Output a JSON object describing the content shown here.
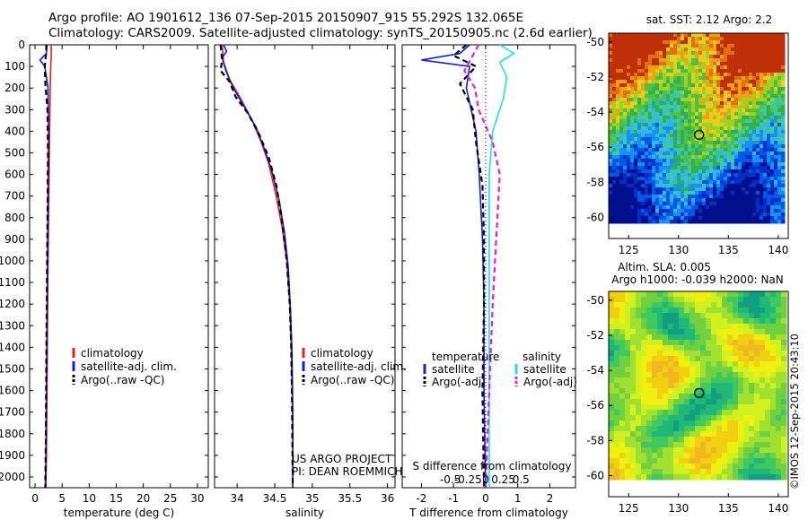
{
  "header": {
    "line1": "Argo profile: AO 1901612_136 07-Sep-2015 20150907_915 55.292S 132.065E",
    "line2": "Climatology: CARS2009. Satellite-adjusted climatology: synTS_20150905.nc (2.6d earlier)"
  },
  "credits": {
    "project": "US ARGO PROJECT",
    "pi": "PI: DEAN ROEMMICH",
    "side": "©IMOS 12-Sep-2015 20:43:10"
  },
  "colors": {
    "climatology": "#e8201c",
    "satellite": "#1020e0",
    "argo": "#000000",
    "sal_satellite": "#18e0f0",
    "sal_argo": "#e020e0"
  },
  "chart_data": [
    {
      "id": "temperature",
      "type": "line",
      "xlabel": "temperature (deg C)",
      "ylabel": "",
      "xlim": [
        -1,
        32
      ],
      "ylim": [
        2050,
        0
      ],
      "xticks": [
        0,
        5,
        10,
        15,
        20,
        25,
        30
      ],
      "yticks": [
        0,
        100,
        200,
        300,
        400,
        500,
        600,
        700,
        800,
        900,
        1000,
        1100,
        1200,
        1300,
        1400,
        1500,
        1600,
        1700,
        1800,
        1900,
        2000
      ],
      "legend": [
        "climatology",
        "satellite-adj. clim.",
        "Argo(..raw -QC)"
      ],
      "series": [
        {
          "name": "climatology",
          "style": "solid",
          "color_key": "climatology",
          "x": [
            3.0,
            3.0,
            2.9,
            2.8,
            2.7,
            2.6,
            2.5,
            2.4,
            2.3,
            2.2,
            2.1,
            2.0
          ],
          "y": [
            0,
            50,
            100,
            200,
            400,
            600,
            800,
            1000,
            1300,
            1600,
            1900,
            2050
          ]
        },
        {
          "name": "satellite-adj. clim.",
          "style": "solid",
          "color_key": "satellite",
          "x": [
            2.2,
            2.1,
            0.9,
            1.8,
            2.4,
            2.5,
            2.4,
            2.3,
            2.2,
            2.1,
            2.0,
            1.9
          ],
          "y": [
            0,
            40,
            70,
            100,
            200,
            400,
            700,
            1000,
            1300,
            1600,
            1900,
            2050
          ]
        },
        {
          "name": "Argo(..raw -QC)",
          "style": "dashed",
          "color_key": "argo",
          "x": [
            2.1,
            2.0,
            1.8,
            1.9,
            2.3,
            2.4,
            2.3,
            2.2,
            2.1,
            2.0,
            1.9
          ],
          "y": [
            0,
            50,
            100,
            180,
            300,
            500,
            800,
            1100,
            1400,
            1800,
            2050
          ]
        }
      ]
    },
    {
      "id": "salinity",
      "type": "line",
      "xlabel": "salinity",
      "ylabel": "",
      "xlim": [
        33.7,
        36.1
      ],
      "ylim": [
        2050,
        0
      ],
      "xticks": [
        34,
        34.5,
        35,
        35.5,
        36
      ],
      "xtick_labels": [
        "34",
        "34.5",
        "35",
        "35.5",
        "36"
      ],
      "legend": [
        "climatology",
        "satellite-adj. clim.",
        "Argo(..raw -QC)"
      ],
      "series": [
        {
          "name": "climatology",
          "style": "solid",
          "color_key": "climatology",
          "x": [
            33.8,
            33.82,
            33.9,
            34.05,
            34.2,
            34.32,
            34.42,
            34.52,
            34.6,
            34.66,
            34.7,
            34.72,
            34.73,
            34.74,
            34.74
          ],
          "y": [
            0,
            80,
            160,
            250,
            350,
            450,
            550,
            700,
            850,
            1000,
            1200,
            1400,
            1600,
            1800,
            2050
          ]
        },
        {
          "name": "satellite-adj. clim.",
          "style": "solid",
          "color_key": "satellite",
          "x": [
            33.82,
            33.86,
            33.8,
            33.85,
            33.95,
            34.1,
            34.25,
            34.36,
            34.46,
            34.56,
            34.63,
            34.68,
            34.71,
            34.73,
            34.74,
            34.74
          ],
          "y": [
            0,
            30,
            60,
            120,
            200,
            290,
            380,
            480,
            580,
            720,
            870,
            1030,
            1230,
            1430,
            1700,
            2050
          ]
        },
        {
          "name": "Argo(..raw -QC)",
          "style": "dashed",
          "color_key": "argo",
          "x": [
            33.78,
            33.8,
            33.78,
            33.9,
            33.98,
            34.15,
            34.3,
            34.42,
            34.52,
            34.6,
            34.66,
            34.7,
            34.72,
            34.73,
            34.74
          ],
          "y": [
            0,
            70,
            120,
            170,
            240,
            320,
            420,
            520,
            650,
            820,
            1000,
            1200,
            1400,
            1650,
            2050
          ]
        }
      ]
    },
    {
      "id": "difference",
      "type": "line",
      "xlabel": "T difference from climatology",
      "x2label": "S difference from climatology",
      "xlim": [
        -2.6,
        2.8
      ],
      "ylim": [
        2050,
        0
      ],
      "xticks": [
        -2,
        -1,
        0,
        1,
        2
      ],
      "x2ticks": [
        -0.5,
        -0.25,
        0,
        0.25,
        0.5
      ],
      "x2tick_labels": [
        "-0.5",
        "-0.25",
        "0",
        "0.25",
        "0.5"
      ],
      "legend_headers": [
        "temperature",
        "salinity"
      ],
      "legend": [
        "satellite",
        "Argo(-adj)",
        "satellite",
        "Argo(-adj)"
      ],
      "series": [
        {
          "name": "satellite",
          "group": "temperature",
          "style": "solid",
          "color_key": "satellite",
          "x": [
            -0.5,
            -0.8,
            -2.0,
            -0.5,
            -0.6,
            -0.3,
            -0.2,
            -0.1,
            -0.05,
            -0.05,
            0.0
          ],
          "y": [
            0,
            40,
            70,
            100,
            200,
            400,
            600,
            900,
            1200,
            1600,
            2050
          ]
        },
        {
          "name": "Argo(-adj)",
          "group": "temperature",
          "style": "dashed",
          "color_key": "argo",
          "x": [
            -0.6,
            -1.0,
            -0.3,
            -0.8,
            -0.4,
            -0.3,
            -0.1,
            -0.05,
            -0.05,
            -0.1,
            -0.05
          ],
          "y": [
            0,
            50,
            100,
            180,
            300,
            450,
            650,
            900,
            1200,
            1600,
            2050
          ]
        },
        {
          "name": "satellite",
          "group": "salinity",
          "style": "solid",
          "color_key": "sal_satellite",
          "x": [
            0.2,
            0.4,
            0.2,
            0.3,
            0.25,
            0.1,
            0.05,
            0.05,
            0.05,
            0.05,
            0.05
          ],
          "y": [
            0,
            40,
            80,
            150,
            250,
            400,
            600,
            900,
            1200,
            1600,
            2050
          ]
        },
        {
          "name": "Argo(-adj)",
          "group": "salinity",
          "style": "dashed",
          "color_key": "sal_argo",
          "x": [
            -0.1,
            -0.2,
            -0.3,
            -0.15,
            -0.1,
            0.1,
            0.2,
            0.15,
            0.1,
            0.05,
            0.0
          ],
          "y": [
            0,
            60,
            120,
            200,
            300,
            450,
            600,
            900,
            1200,
            1600,
            2050
          ]
        }
      ]
    },
    {
      "id": "sst-map",
      "type": "heatmap",
      "title": "sat. SST: 2.12  Argo: 2.2",
      "xlim": [
        123,
        141
      ],
      "ylim": [
        -61.2,
        -49.5
      ],
      "xticks": [
        125,
        130,
        135,
        140
      ],
      "yticks": [
        -50,
        -52,
        -54,
        -56,
        -58,
        -60
      ],
      "marker": {
        "lon": 132.065,
        "lat": -55.292
      }
    },
    {
      "id": "sla-map",
      "type": "heatmap",
      "title": "Altim. SLA: 0.005",
      "subtitle": "Argo h1000: -0.039 h2000: NaN",
      "xlim": [
        123,
        141
      ],
      "ylim": [
        -61.2,
        -49.5
      ],
      "xticks": [
        125,
        130,
        135,
        140
      ],
      "yticks": [
        -50,
        -52,
        -54,
        -56,
        -58,
        -60
      ],
      "marker": {
        "lon": 132.065,
        "lat": -55.292
      }
    }
  ]
}
